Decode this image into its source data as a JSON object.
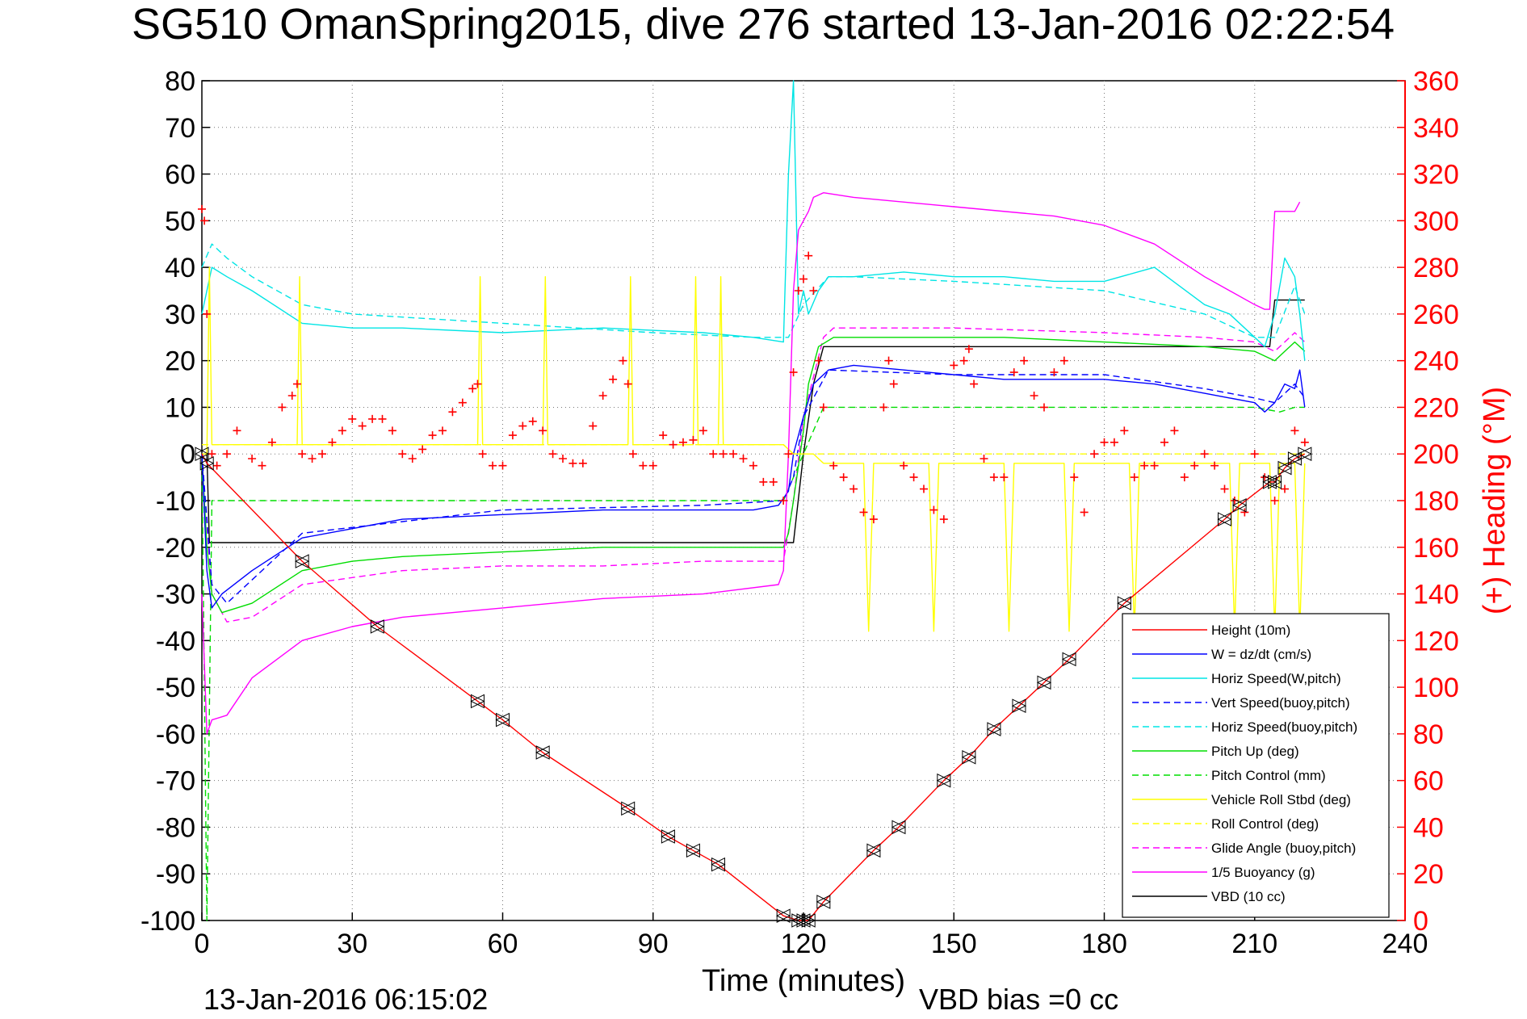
{
  "title": "SG510 OmanSpring2015, dive 276 started 13-Jan-2016 02:22:54",
  "footer_left": "13-Jan-2016 06:15:02",
  "footer_right": "VBD bias =0 cc",
  "colors": {
    "height": "#ff0000",
    "w": "#0000ff",
    "horiz_speed": "#00e5e5",
    "pitch": "#00dd00",
    "roll": "#ffff00",
    "glide": "#ff00ff",
    "buoyancy": "#ff00ff",
    "vbd": "#000000",
    "heading": "#ff0000"
  },
  "chart_data": {
    "type": "line",
    "title": "SG510 OmanSpring2015, dive 276 started 13-Jan-2016 02:22:54",
    "xlabel": "Time (minutes)",
    "ylabel": "",
    "y2label": "(+) Heading (°M)",
    "xlim": [
      0,
      240
    ],
    "ylim": [
      -100,
      80
    ],
    "y2lim": [
      0,
      360
    ],
    "xticks": [
      "0",
      "30",
      "60",
      "90",
      "120",
      "150",
      "180",
      "210",
      "240"
    ],
    "yticks": [
      "80",
      "70",
      "60",
      "50",
      "40",
      "30",
      "20",
      "10",
      "0",
      "-10",
      "-20",
      "-30",
      "-40",
      "-50",
      "-60",
      "-70",
      "-80",
      "-90",
      "-100"
    ],
    "y2ticks": [
      "360",
      "340",
      "320",
      "300",
      "280",
      "260",
      "240",
      "220",
      "200",
      "180",
      "160",
      "140",
      "120",
      "100",
      "80",
      "60",
      "40",
      "20",
      "0"
    ],
    "grid": true,
    "legend_position": "bottom-right",
    "series": [
      {
        "name": "Height (10m)",
        "style": "solid",
        "color": "#ff0000",
        "markers": "triangle",
        "x": [
          0,
          1,
          20,
          35,
          55,
          60,
          68,
          85,
          93,
          98,
          103,
          116,
          119,
          120,
          121,
          124,
          134,
          139,
          148,
          153,
          158,
          163,
          168,
          173,
          184,
          204,
          207,
          213,
          214,
          216,
          218,
          220
        ],
        "y": [
          0,
          -2,
          -23,
          -37,
          -53,
          -57,
          -64,
          -76,
          -82,
          -85,
          -88,
          -99,
          -100,
          -100,
          -100,
          -96,
          -85,
          -80,
          -70,
          -65,
          -59,
          -54,
          -49,
          -44,
          -32,
          -14,
          -11,
          -6,
          -6,
          -3,
          -1,
          0
        ]
      },
      {
        "name": "W = dz/dt (cm/s)",
        "style": "solid",
        "color": "#0000ff",
        "x": [
          0,
          1,
          2,
          4,
          10,
          20,
          30,
          40,
          60,
          80,
          100,
          110,
          115,
          117,
          118,
          120,
          122,
          125,
          130,
          140,
          150,
          160,
          170,
          180,
          190,
          200,
          205,
          210,
          212,
          214,
          216,
          218,
          219,
          220
        ],
        "y": [
          0,
          -25,
          -33,
          -30,
          -25,
          -18,
          -16,
          -14,
          -13,
          -12,
          -12,
          -12,
          -11,
          -8,
          0,
          8,
          15,
          18,
          19,
          18,
          17,
          16,
          16,
          16,
          15,
          13,
          12,
          11,
          9,
          11,
          15,
          14,
          18,
          10
        ]
      },
      {
        "name": "Horiz Speed(W,pitch)",
        "style": "solid",
        "color": "#00e5e5",
        "x": [
          0,
          2,
          5,
          10,
          20,
          30,
          40,
          60,
          80,
          100,
          110,
          116,
          117,
          118,
          119,
          120,
          121,
          123,
          125,
          130,
          140,
          150,
          160,
          170,
          180,
          190,
          200,
          205,
          210,
          212,
          214,
          216,
          218,
          219,
          220
        ],
        "y": [
          30,
          40,
          38,
          35,
          28,
          27,
          27,
          26,
          27,
          26,
          25,
          24,
          60,
          80,
          30,
          35,
          30,
          35,
          38,
          38,
          39,
          38,
          38,
          37,
          37,
          40,
          32,
          30,
          25,
          23,
          30,
          42,
          38,
          30,
          20
        ]
      },
      {
        "name": "Vert Speed(buoy,pitch)",
        "style": "dashed",
        "color": "#0000ff",
        "x": [
          0,
          2,
          5,
          20,
          60,
          100,
          116,
          118,
          120,
          125,
          150,
          180,
          200,
          210,
          214,
          218,
          220
        ],
        "y": [
          0,
          -28,
          -32,
          -17,
          -12,
          -11,
          -10,
          -5,
          8,
          18,
          17,
          17,
          14,
          12,
          11,
          15,
          12
        ]
      },
      {
        "name": "Horiz Speed(buoy,pitch)",
        "style": "dashed",
        "color": "#00e5e5",
        "x": [
          0,
          2,
          5,
          10,
          20,
          30,
          60,
          90,
          110,
          117,
          120,
          125,
          130,
          150,
          180,
          200,
          210,
          214,
          218,
          220
        ],
        "y": [
          40,
          45,
          42,
          38,
          32,
          30,
          28,
          26,
          25,
          25,
          32,
          38,
          38,
          37,
          35,
          30,
          25,
          25,
          36,
          30
        ]
      },
      {
        "name": "Pitch Up (deg)",
        "style": "solid",
        "color": "#00dd00",
        "x": [
          0,
          1,
          2,
          4,
          10,
          20,
          30,
          40,
          60,
          80,
          100,
          110,
          116,
          117,
          118,
          120,
          121,
          123,
          126,
          140,
          160,
          180,
          200,
          210,
          214,
          216,
          218,
          220
        ],
        "y": [
          0,
          -20,
          -30,
          -34,
          -32,
          -25,
          -23,
          -22,
          -21,
          -20,
          -20,
          -20,
          -20,
          -17,
          -10,
          5,
          15,
          23,
          25,
          25,
          25,
          24,
          23,
          22,
          20,
          22,
          24,
          22
        ]
      },
      {
        "name": "Pitch Control (mm)",
        "style": "dashed",
        "color": "#00dd00",
        "x": [
          0,
          1,
          2,
          116,
          120,
          124,
          210,
          215,
          218,
          220
        ],
        "y": [
          0,
          -100,
          -10,
          -10,
          0,
          10,
          10,
          9,
          10,
          10
        ]
      },
      {
        "name": "Vehicle Roll Stbd (deg)",
        "style": "solid",
        "color": "#ffff00",
        "x": [
          0,
          1,
          1.5,
          2,
          19,
          19.5,
          20,
          55,
          55.5,
          56,
          68,
          68.5,
          69,
          85,
          85.5,
          86,
          98,
          98.5,
          99,
          103,
          103.5,
          104,
          116,
          118,
          120,
          122,
          124,
          132,
          133,
          134,
          145,
          146,
          147,
          160,
          161,
          162,
          172,
          173,
          174,
          185,
          186,
          187,
          205,
          206,
          207,
          213,
          214,
          215,
          218,
          219,
          220
        ],
        "y": [
          0,
          0,
          40,
          2,
          2,
          38,
          2,
          2,
          38,
          2,
          2,
          38,
          2,
          2,
          38,
          2,
          2,
          38,
          2,
          2,
          38,
          2,
          2,
          0,
          0,
          0,
          -2,
          -2,
          -38,
          -2,
          -2,
          -38,
          -2,
          -2,
          -38,
          -2,
          -2,
          -38,
          -2,
          -2,
          -38,
          -2,
          -2,
          -38,
          -2,
          -2,
          -38,
          -2,
          -2,
          -38,
          -2
        ]
      },
      {
        "name": "Roll Control (deg)",
        "style": "dashed",
        "color": "#ffff00",
        "x": [
          0,
          116,
          118,
          220
        ],
        "y": [
          2,
          2,
          0,
          0
        ]
      },
      {
        "name": "Glide Angle (buoy,pitch)",
        "style": "dashed",
        "color": "#ff00ff",
        "x": [
          0,
          2,
          5,
          10,
          20,
          40,
          60,
          80,
          100,
          116,
          118,
          120,
          124,
          126,
          150,
          180,
          200,
          210,
          214,
          218,
          220
        ],
        "y": [
          0,
          -30,
          -36,
          -35,
          -28,
          -25,
          -24,
          -24,
          -23,
          -23,
          -10,
          8,
          25,
          27,
          27,
          26,
          25,
          24,
          22,
          26,
          24
        ]
      },
      {
        "name": "1/5 Buoyancy (g)",
        "style": "solid",
        "color": "#ff00ff",
        "x": [
          0,
          1,
          2,
          5,
          10,
          20,
          30,
          40,
          60,
          80,
          100,
          115,
          116,
          117,
          118,
          119,
          120,
          121,
          122,
          124,
          130,
          150,
          170,
          180,
          190,
          200,
          205,
          210,
          212,
          213,
          214,
          218,
          219
        ],
        "y": [
          -30,
          -60,
          -57,
          -56,
          -48,
          -40,
          -37,
          -35,
          -33,
          -31,
          -30,
          -28,
          -25,
          0,
          35,
          48,
          50,
          52,
          55,
          56,
          55,
          53,
          51,
          49,
          45,
          38,
          35,
          32,
          31,
          31,
          52,
          52,
          54
        ]
      },
      {
        "name": "VBD (10 cc)",
        "style": "solid",
        "color": "#000000",
        "x": [
          0,
          1,
          1.5,
          2,
          116,
          118,
          120,
          122,
          124,
          126,
          212,
          213,
          214,
          220
        ],
        "y": [
          0,
          0,
          -19,
          -19,
          -19,
          -19,
          0,
          15,
          23,
          23,
          23,
          23,
          33,
          33
        ]
      }
    ],
    "heading_series": {
      "name": "(+) Heading (°M)",
      "color": "#ff0000",
      "marker": "+",
      "axis": "right",
      "x": [
        0,
        0.5,
        1,
        2,
        3,
        5,
        7,
        10,
        12,
        14,
        16,
        18,
        19,
        20,
        22,
        24,
        26,
        28,
        30,
        32,
        34,
        36,
        38,
        40,
        42,
        44,
        46,
        48,
        50,
        52,
        54,
        55,
        56,
        58,
        60,
        62,
        64,
        66,
        68,
        70,
        72,
        74,
        76,
        78,
        80,
        82,
        84,
        85,
        86,
        88,
        90,
        92,
        94,
        96,
        98,
        100,
        102,
        104,
        106,
        108,
        110,
        112,
        114,
        116,
        117,
        118,
        119,
        120,
        121,
        122,
        123,
        124,
        126,
        128,
        130,
        132,
        134,
        136,
        137,
        138,
        140,
        142,
        144,
        146,
        148,
        150,
        152,
        153,
        154,
        156,
        158,
        160,
        162,
        164,
        166,
        168,
        170,
        172,
        174,
        176,
        178,
        180,
        182,
        184,
        186,
        188,
        190,
        192,
        194,
        196,
        198,
        200,
        202,
        204,
        206,
        208,
        210,
        212,
        214,
        216,
        218,
        220
      ],
      "y": [
        305,
        300,
        260,
        200,
        195,
        200,
        210,
        198,
        195,
        205,
        220,
        225,
        230,
        200,
        198,
        200,
        205,
        210,
        215,
        212,
        215,
        215,
        210,
        200,
        198,
        202,
        208,
        210,
        218,
        222,
        228,
        230,
        200,
        195,
        195,
        208,
        212,
        214,
        210,
        200,
        198,
        196,
        196,
        212,
        225,
        232,
        240,
        230,
        200,
        195,
        195,
        208,
        204,
        205,
        206,
        210,
        200,
        200,
        200,
        198,
        195,
        188,
        188,
        180,
        200,
        235,
        270,
        275,
        285,
        270,
        240,
        220,
        195,
        190,
        185,
        175,
        172,
        220,
        240,
        230,
        195,
        190,
        185,
        176,
        172,
        238,
        240,
        245,
        230,
        198,
        190,
        190,
        235,
        240,
        225,
        220,
        235,
        240,
        190,
        175,
        200,
        205,
        205,
        210,
        190,
        195,
        195,
        205,
        210,
        190,
        195,
        200,
        195,
        185,
        180,
        175,
        200,
        190,
        180,
        185,
        210,
        205
      ]
    }
  }
}
